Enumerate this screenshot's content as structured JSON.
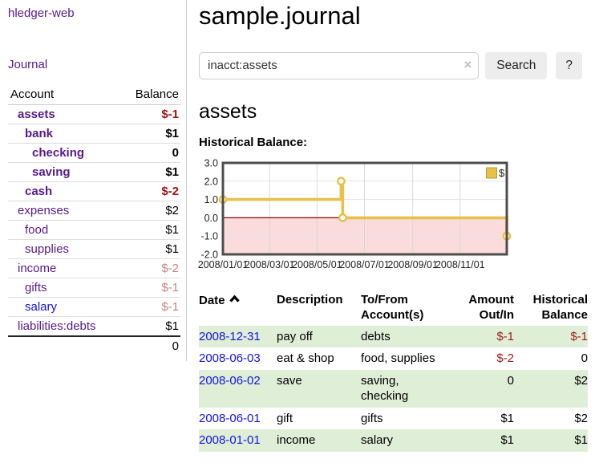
{
  "app": {
    "title": "hledger-web",
    "nav": {
      "journal": "Journal"
    }
  },
  "colors": {
    "visited_link_purple": "#551a8b",
    "link_blue": "#1414e0",
    "negative_strong": "#a21313",
    "negative_soft": "#c78383",
    "row_stripe_green": "#dfeed7"
  },
  "sidebar": {
    "table": {
      "account_header": "Account",
      "balance_header": "Balance",
      "rows": [
        {
          "account": "assets",
          "balance": "$-1",
          "depth": 0,
          "bold": true,
          "blue": false
        },
        {
          "account": "bank",
          "balance": "$1",
          "depth": 1,
          "bold": true,
          "blue": false
        },
        {
          "account": "checking",
          "balance": "0",
          "depth": 2,
          "bold": true,
          "blue": false
        },
        {
          "account": "saving",
          "balance": "$1",
          "depth": 2,
          "bold": true,
          "blue": false
        },
        {
          "account": "cash",
          "balance": "$-2",
          "depth": 1,
          "bold": true,
          "blue": false
        },
        {
          "account": "expenses",
          "balance": "$2",
          "depth": 0,
          "bold": false,
          "blue": false
        },
        {
          "account": "food",
          "balance": "$1",
          "depth": 1,
          "bold": false,
          "blue": false
        },
        {
          "account": "supplies",
          "balance": "$1",
          "depth": 1,
          "bold": false,
          "blue": false
        },
        {
          "account": "income",
          "balance": "$-2",
          "depth": 0,
          "bold": false,
          "blue": false
        },
        {
          "account": "gifts",
          "balance": "$-1",
          "depth": 1,
          "bold": false,
          "blue": false
        },
        {
          "account": "salary",
          "balance": "$-1",
          "depth": 1,
          "bold": false,
          "blue": true
        },
        {
          "account": "liabilities:debts",
          "balance": "$1",
          "depth": 0,
          "bold": false,
          "blue": false
        }
      ],
      "total": "0"
    }
  },
  "main": {
    "title": "sample.journal",
    "search": {
      "value": "inacct:assets",
      "clear_icon": "×",
      "search_label": "Search",
      "help_label": "?"
    },
    "account_heading": "assets",
    "chart_heading": "Historical Balance:",
    "register": {
      "headers": {
        "date": "Date",
        "description": "Description",
        "tofrom": "To/From\nAccount(s)",
        "amount": "Amount\nOut/In",
        "balance": "Historical\nBalance"
      },
      "rows": [
        {
          "date": "2008-12-31",
          "description": "pay off",
          "tofrom": "debts",
          "amount": "$-1",
          "balance": "$-1"
        },
        {
          "date": "2008-06-03",
          "description": "eat & shop",
          "tofrom": "food, supplies",
          "amount": "$-2",
          "balance": "0"
        },
        {
          "date": "2008-06-02",
          "description": "save",
          "tofrom": "saving,\nchecking",
          "amount": "0",
          "balance": "$2"
        },
        {
          "date": "2008-06-01",
          "description": "gift",
          "tofrom": "gifts",
          "amount": "$1",
          "balance": "$2"
        },
        {
          "date": "2008-01-01",
          "description": "income",
          "tofrom": "salary",
          "amount": "$1",
          "balance": "$1"
        }
      ]
    }
  },
  "chart_data": {
    "type": "line",
    "title": "Historical Balance",
    "step": true,
    "series": [
      {
        "name": "$",
        "color": "#e8c04a",
        "points": [
          [
            "2008-01-01",
            1
          ],
          [
            "2008-06-01",
            2
          ],
          [
            "2008-06-03",
            0
          ],
          [
            "2008-12-31",
            -1
          ]
        ]
      }
    ],
    "xlim": [
      "2008-01-01",
      "2008-12-31"
    ],
    "ylim": [
      -2,
      3
    ],
    "yticks": [
      {
        "label": "3.0",
        "value": 3
      },
      {
        "label": "2.0",
        "value": 2
      },
      {
        "label": "1.0",
        "value": 1
      },
      {
        "label": "0.0",
        "value": 0
      },
      {
        "label": "-1.0",
        "value": -1
      },
      {
        "label": "-2.0",
        "value": -2
      }
    ],
    "xticks": [
      {
        "label": "2008/01/01",
        "date": "2008-01-01"
      },
      {
        "label": "2008/03/01",
        "date": "2008-03-01"
      },
      {
        "label": "2008/05/01",
        "date": "2008-05-01"
      },
      {
        "label": "2008/07/01",
        "date": "2008-07-01"
      },
      {
        "label": "2008/09/01",
        "date": "2008-09-01"
      },
      {
        "label": "2008/11/01",
        "date": "2008-11-01"
      }
    ],
    "grid": true,
    "negative_region_color": "#fbdbdb",
    "zero_line_color": "#8b0000",
    "plot_border_color": "#4d4d4d",
    "legend": {
      "label": "$",
      "swatch_color": "#e8c04a",
      "position": "top-right"
    }
  }
}
